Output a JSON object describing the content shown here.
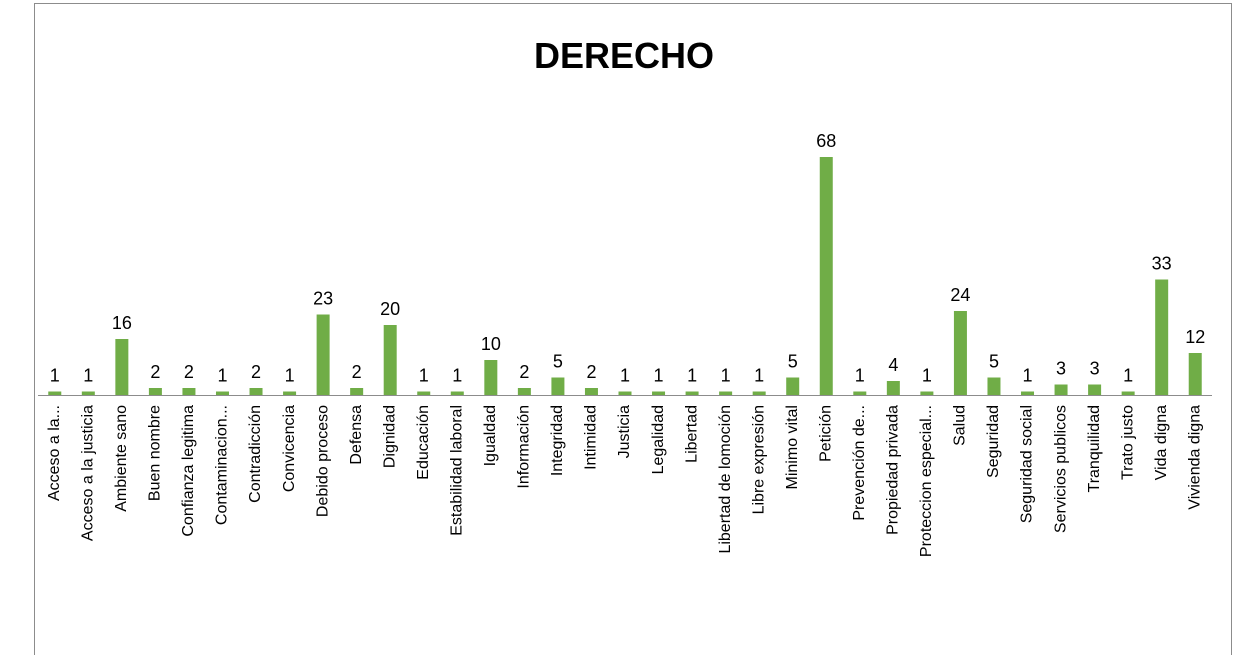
{
  "chart_data": {
    "type": "bar",
    "title": "DERECHO",
    "categories": [
      "Acceso a la...",
      "Acceso a la justicia",
      "Ambiente sano",
      "Buen nombre",
      "Confianza legitima",
      "Contaminacion...",
      "Contradicción",
      "Convicencia",
      "Debido proceso",
      "Defensa",
      "Dignidad",
      "Educación",
      "Estabilidad laboral",
      "Igualdad",
      "Información",
      "Integridad",
      "Intimidad",
      "Justicia",
      "Legalidad",
      "Libertad",
      "Libertad de lomoción",
      "Libre expresión",
      "Minimo vital",
      "Petición",
      "Prevención de...",
      "Propiedad privada",
      "Proteccion especial...",
      "Salud",
      "Seguridad",
      "Seguridad social",
      "Servicios publicos",
      "Tranquilidad",
      "Trato justo",
      "Vida digna",
      "Vivienda digna"
    ],
    "values": [
      1,
      1,
      16,
      2,
      2,
      1,
      2,
      1,
      23,
      2,
      20,
      1,
      1,
      10,
      2,
      5,
      2,
      1,
      1,
      1,
      1,
      1,
      5,
      68,
      1,
      4,
      1,
      24,
      5,
      1,
      3,
      3,
      1,
      33,
      12
    ],
    "color": "#70ad47"
  }
}
